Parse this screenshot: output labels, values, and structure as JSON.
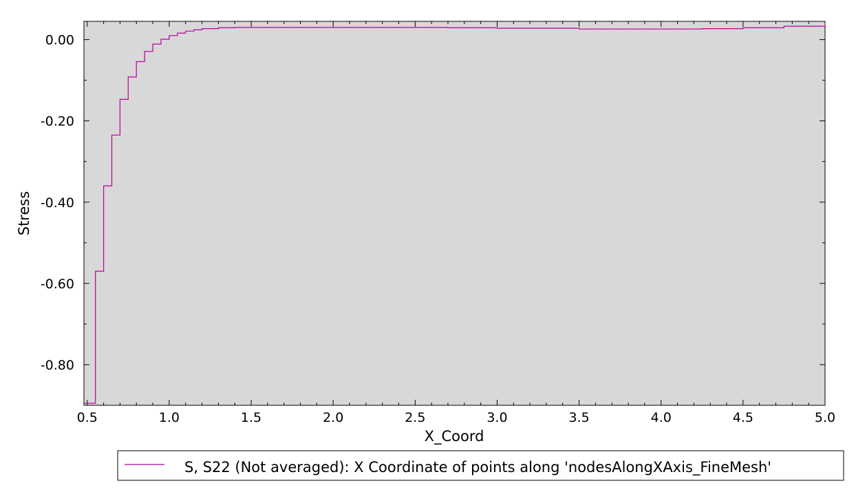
{
  "chart_data": {
    "type": "line",
    "xlabel": "X_Coord",
    "ylabel": "Stress",
    "xlim": [
      0.48,
      5.0
    ],
    "ylim": [
      -0.9,
      0.045
    ],
    "x_ticks": [
      0.5,
      1.0,
      1.5,
      2.0,
      2.5,
      3.0,
      3.5,
      4.0,
      4.5,
      5.0
    ],
    "x_tick_labels": [
      "0.5",
      "1.0",
      "1.5",
      "2.0",
      "2.5",
      "3.0",
      "3.5",
      "4.0",
      "4.5",
      "5.0"
    ],
    "y_ticks": [
      0.0,
      -0.2,
      -0.4,
      -0.6,
      -0.8
    ],
    "y_tick_labels": [
      "0.00",
      "-0.20",
      "-0.40",
      "-0.60",
      "-0.80"
    ],
    "grid": false,
    "background": "#d8d8d8",
    "legend_position": "bottom-right",
    "series": [
      {
        "name": "S, S22 (Not averaged): X Coordinate of points along 'nodesAlongXAxis_FineMesh'",
        "color": "#b4009e",
        "step": true,
        "x": [
          0.48,
          0.55,
          0.6,
          0.65,
          0.7,
          0.75,
          0.8,
          0.85,
          0.9,
          0.95,
          1.0,
          1.05,
          1.1,
          1.15,
          1.2,
          1.3,
          1.4,
          1.5,
          2.0,
          2.7,
          3.0,
          3.5,
          4.0,
          4.25,
          4.5,
          4.75,
          5.0
        ],
        "y": [
          -0.895,
          -0.57,
          -0.36,
          -0.235,
          -0.147,
          -0.092,
          -0.054,
          -0.029,
          -0.011,
          0.001,
          0.01,
          0.016,
          0.021,
          0.024,
          0.027,
          0.029,
          0.03,
          0.03,
          0.03,
          0.029,
          0.028,
          0.026,
          0.026,
          0.027,
          0.029,
          0.033,
          0.041
        ]
      }
    ]
  }
}
